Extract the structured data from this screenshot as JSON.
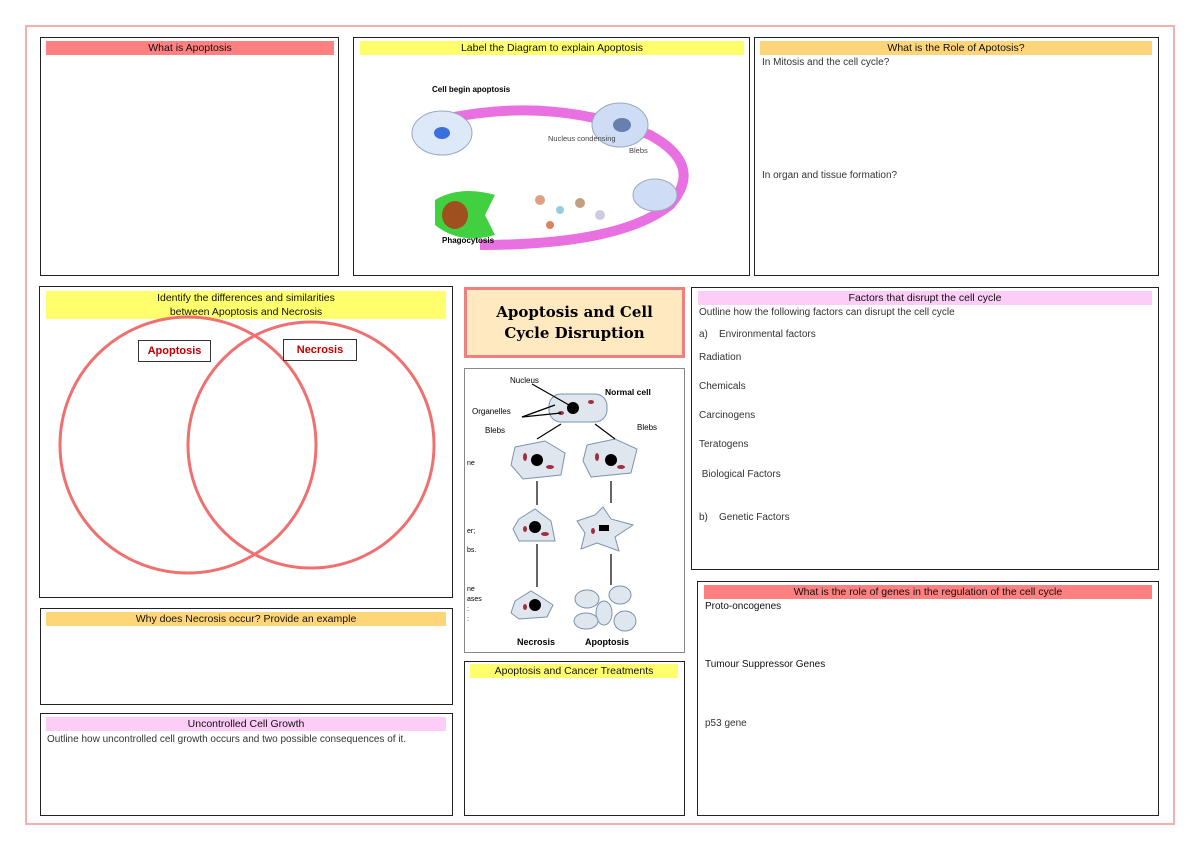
{
  "page_title": "Apoptosis and Cell Cycle Disruption",
  "colors": {
    "border": "#f4b0b0",
    "red_header": "#ff8080",
    "yellow_header": "#ffff6e",
    "orange_header": "#ffd57a",
    "pink_header": "#fccdf6",
    "title_fill": "#ffe9c0",
    "venn_circle": "#f07070"
  },
  "what_is_apoptosis": {
    "header": "What is Apoptosis"
  },
  "label_diagram": {
    "header": "Label the Diagram to explain Apoptosis",
    "labels": {
      "start": "Cell begin apoptosis",
      "nucleus": "Nucleus condensing",
      "blebs": "Blebs",
      "phagocytosis": "Phagocytosis"
    }
  },
  "role": {
    "header": "What is the Role of Apotosis?",
    "q1": "In Mitosis and the cell cycle?",
    "q2": "In organ and tissue formation?"
  },
  "venn": {
    "header": "Identify the differences and similarities between Apoptosis and Necrosis",
    "left": "Apoptosis",
    "right": "Necrosis"
  },
  "necrosis_why": {
    "header": "Why does Necrosis occur? Provide an example"
  },
  "uncontrolled": {
    "header": "Uncontrolled Cell Growth",
    "text": "Outline how uncontrolled cell growth occurs and two possible consequences of it."
  },
  "comparison_diagram": {
    "nucleus": "Nucleus",
    "normal": "Normal cell",
    "organelles": "Organelles",
    "blebs": "Blebs",
    "necrosis": "Necrosis",
    "apoptosis": "Apoptosis",
    "cut_text": [
      "ne",
      "er;",
      "bs.",
      "ne",
      "ases",
      ":",
      ":"
    ]
  },
  "cancer": {
    "header": "Apoptosis and Cancer Treatments"
  },
  "factors": {
    "header": "Factors that disrupt the cell cycle",
    "intro": "Outline how the following factors can disrupt the cell cycle",
    "a": "a)    Environmental factors",
    "items": [
      "Radiation",
      "Chemicals",
      "Carcinogens",
      "Teratogens",
      " Biological Factors"
    ],
    "b": "b)    Genetic Factors"
  },
  "genes": {
    "header": "What is the role of genes in the regulation of the cell cycle",
    "items": [
      "Proto-oncogenes",
      "Tumour Suppressor Genes",
      "p53 gene"
    ]
  }
}
